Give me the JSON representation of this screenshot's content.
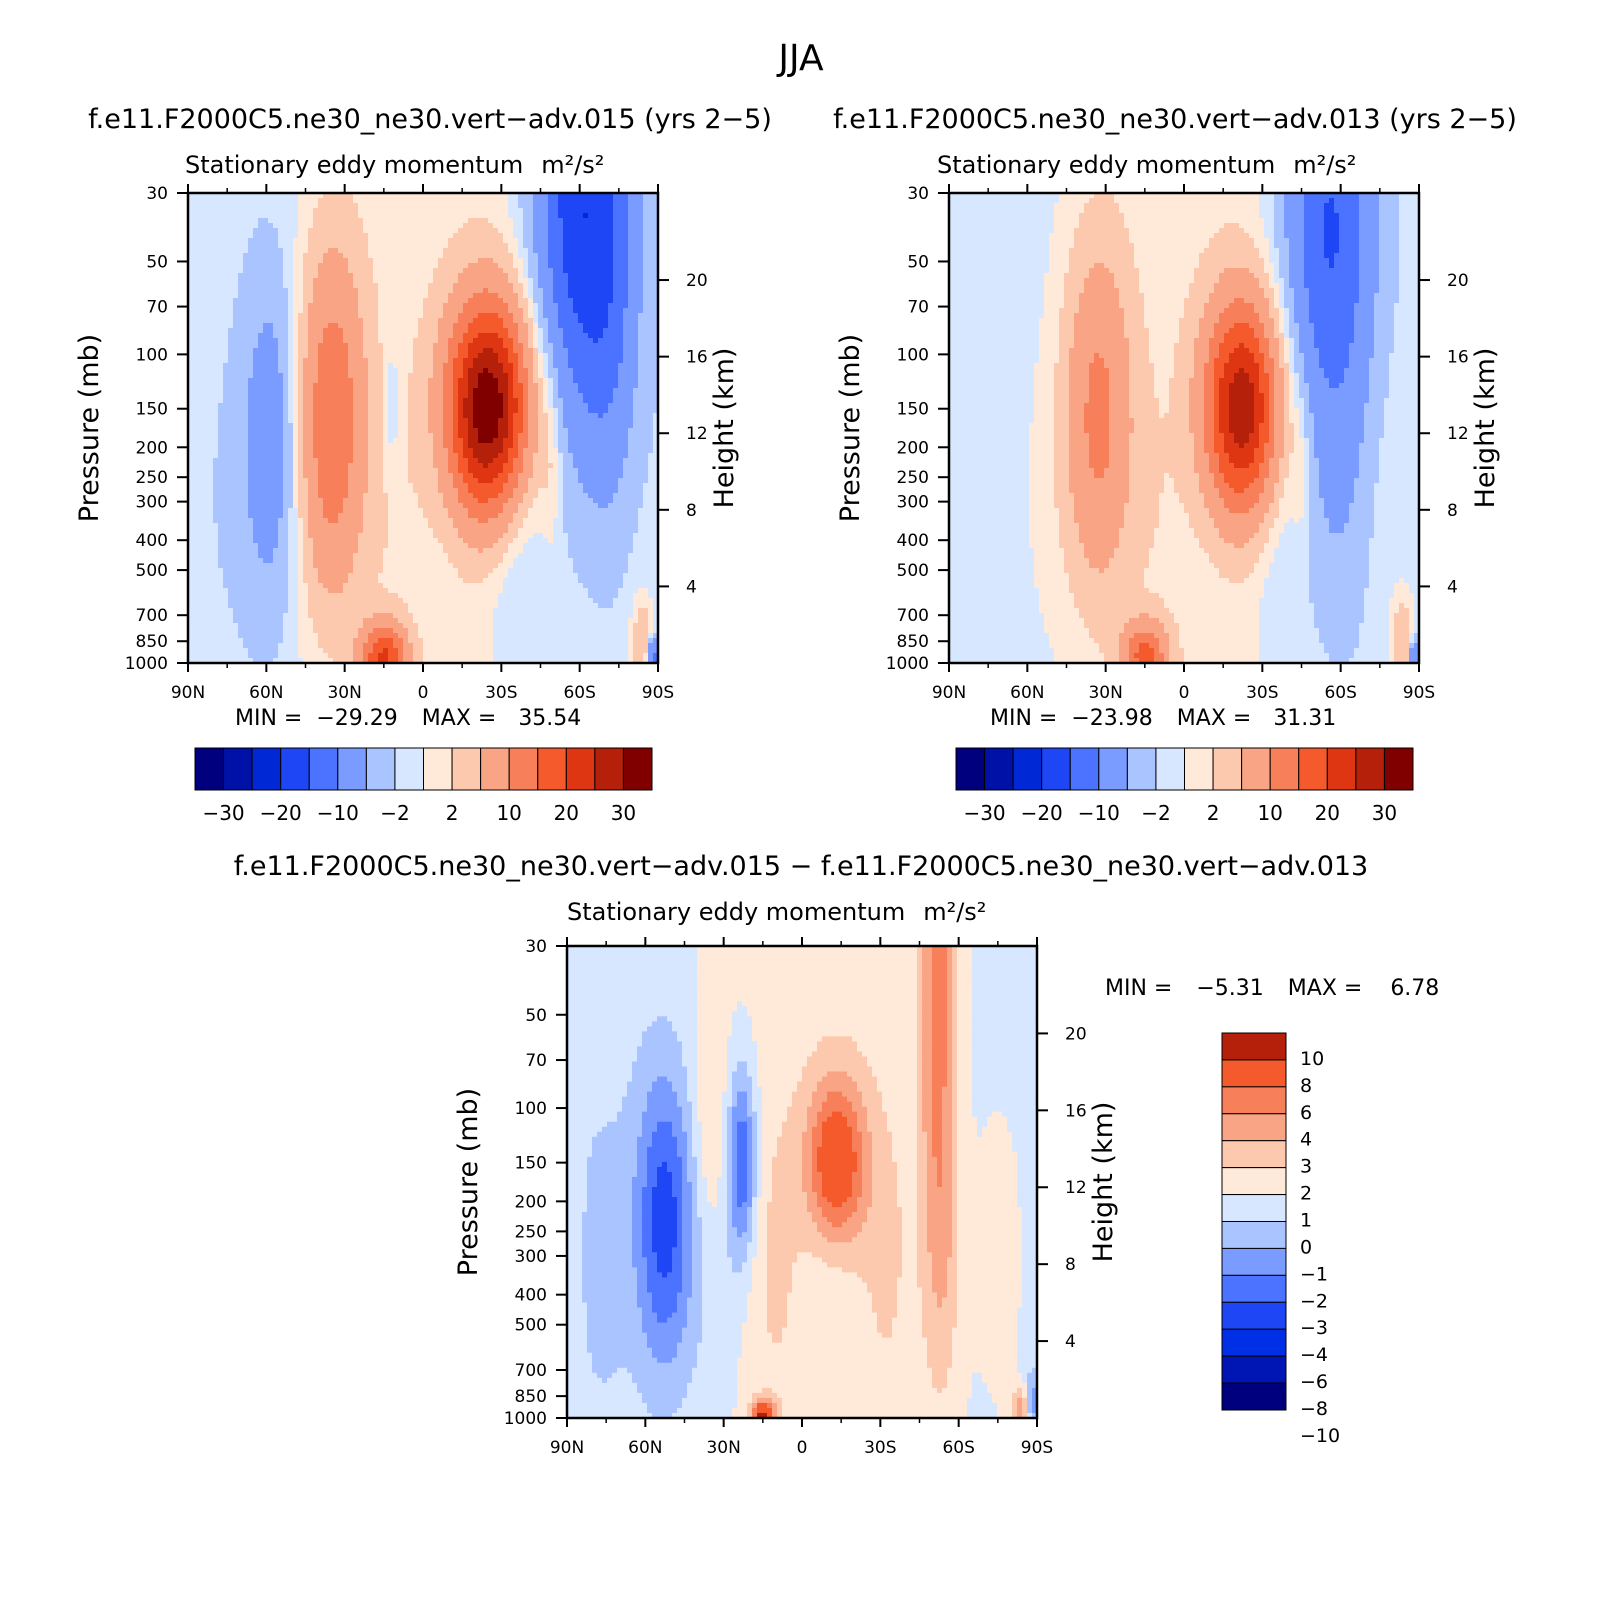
{
  "figure": {
    "title": "JJA"
  },
  "colors": {
    "diverging_16": [
      "#00007f",
      "#0011a8",
      "#0028d4",
      "#1e46f5",
      "#4b73ff",
      "#7a9bff",
      "#aac4ff",
      "#d6e7ff",
      "#ffe9d9",
      "#fcc8ae",
      "#f9a484",
      "#f7805a",
      "#f45a2b",
      "#de3612",
      "#b4200a",
      "#800000"
    ],
    "diff_14": [
      "#00007f",
      "#0016b4",
      "#0030e6",
      "#1e46f5",
      "#4b73ff",
      "#7a9bff",
      "#aac4ff",
      "#d6e7ff",
      "#ffe9d9",
      "#fcc8ae",
      "#f9a484",
      "#f7805a",
      "#f45a2b",
      "#b4200a"
    ]
  },
  "chart_data": [
    {
      "type": "heatmap",
      "id": "panel-015",
      "title": "f.e11.F2000C5.ne30_ne30.vert−adv.015 (yrs 2−5)",
      "subtitle": "Stationary eddy momentum",
      "units": "m²/s²",
      "xlabel": "",
      "ylabel": "Pressure (mb)",
      "y2label": "Height (km)",
      "x_ticks": [
        "90N",
        "60N",
        "30N",
        "0",
        "30S",
        "60S",
        "90S"
      ],
      "y_ticks": [
        "30",
        "50",
        "70",
        "100",
        "150",
        "200",
        "250",
        "300",
        "400",
        "500",
        "700",
        "850",
        "1000"
      ],
      "y2_ticks": [
        "20",
        "16",
        "12",
        "8",
        "4"
      ],
      "min_label": "MIN =",
      "min_value": "−29.29",
      "max_label": "MAX =",
      "max_value": "35.54",
      "colorbar_labels": [
        "−30",
        "−20",
        "−10",
        "−2",
        "2",
        "10",
        "20",
        "30"
      ],
      "blobs": [
        {
          "lat": -25,
          "p": 150,
          "sx": 11,
          "sy": 0.55,
          "v": 34
        },
        {
          "lat": 35,
          "p": 170,
          "sx": 9,
          "sy": 0.9,
          "v": 15
        },
        {
          "lat": 58,
          "p": 200,
          "sx": 8,
          "sy": 0.9,
          "v": -8
        },
        {
          "lat": -60,
          "p": 32,
          "sx": 12,
          "sy": 1.1,
          "v": -18
        },
        {
          "lat": -72,
          "p": 90,
          "sx": 8,
          "sy": 1.2,
          "v": -6
        },
        {
          "lat": -35,
          "p": 380,
          "sx": 8,
          "sy": 0.8,
          "v": -4
        },
        {
          "lat": 15,
          "p": 960,
          "sx": 6,
          "sy": 0.18,
          "v": 20
        },
        {
          "lat": -49,
          "p": 230,
          "sx": 3,
          "sy": 0.45,
          "v": 3
        },
        {
          "lat": 12,
          "p": 150,
          "sx": 2.5,
          "sy": 0.35,
          "v": -3
        },
        {
          "lat": -84,
          "p": 870,
          "sx": 3,
          "sy": 0.25,
          "v": 6
        },
        {
          "lat": -88,
          "p": 950,
          "sx": 1.5,
          "sy": 0.1,
          "v": -14
        }
      ],
      "background": 1.2
    },
    {
      "type": "heatmap",
      "id": "panel-013",
      "title": "f.e11.F2000C5.ne30_ne30.vert−adv.013 (yrs 2−5)",
      "subtitle": "Stationary eddy momentum",
      "units": "m²/s²",
      "xlabel": "",
      "ylabel": "Pressure (mb)",
      "y2label": "Height (km)",
      "x_ticks": [
        "90N",
        "60N",
        "30N",
        "0",
        "30S",
        "60S",
        "90S"
      ],
      "y_ticks": [
        "30",
        "50",
        "70",
        "100",
        "150",
        "200",
        "250",
        "300",
        "400",
        "500",
        "700",
        "850",
        "1000"
      ],
      "y2_ticks": [
        "20",
        "16",
        "12",
        "8",
        "4"
      ],
      "min_label": "MIN =",
      "min_value": "−23.98",
      "max_label": "MAX =",
      "max_value": "31.31",
      "colorbar_labels": [
        "−30",
        "−20",
        "−10",
        "−2",
        "2",
        "10",
        "20",
        "30"
      ],
      "blobs": [
        {
          "lat": -22,
          "p": 150,
          "sx": 10,
          "sy": 0.55,
          "v": 28
        },
        {
          "lat": 33,
          "p": 165,
          "sx": 9,
          "sy": 0.9,
          "v": 12
        },
        {
          "lat": -55,
          "p": 35,
          "sx": 12,
          "sy": 1.0,
          "v": -14
        },
        {
          "lat": -60,
          "p": 200,
          "sx": 10,
          "sy": 1.2,
          "v": -4
        },
        {
          "lat": -35,
          "p": 400,
          "sx": 8,
          "sy": 0.8,
          "v": -3
        },
        {
          "lat": 15,
          "p": 960,
          "sx": 6,
          "sy": 0.18,
          "v": 16
        },
        {
          "lat": -45,
          "p": 250,
          "sx": 3,
          "sy": 0.45,
          "v": 3
        },
        {
          "lat": -84,
          "p": 880,
          "sx": 3,
          "sy": 0.25,
          "v": 6
        },
        {
          "lat": -88,
          "p": 950,
          "sx": 1.5,
          "sy": 0.1,
          "v": -10
        }
      ],
      "background": 1.2
    },
    {
      "type": "heatmap",
      "id": "panel-diff",
      "title": "f.e11.F2000C5.ne30_ne30.vert−adv.015 − f.e11.F2000C5.ne30_ne30.vert−adv.013",
      "subtitle": "Stationary eddy momentum",
      "units": "m²/s²",
      "xlabel": "",
      "ylabel": "Pressure (mb)",
      "y2label": "Height (km)",
      "x_ticks": [
        "90N",
        "60N",
        "30N",
        "0",
        "30S",
        "60S",
        "90S"
      ],
      "y_ticks": [
        "30",
        "50",
        "70",
        "100",
        "150",
        "200",
        "250",
        "300",
        "400",
        "500",
        "700",
        "850",
        "1000"
      ],
      "y2_ticks": [
        "20",
        "16",
        "12",
        "8",
        "4"
      ],
      "min_label": "MIN =",
      "min_value": "−5.31",
      "max_label": "MAX =",
      "max_value": "6.78",
      "colorbar_labels": [
        "10",
        "8",
        "6",
        "4",
        "3",
        "2",
        "1",
        "0",
        "−1",
        "−2",
        "−3",
        "−4",
        "−6",
        "−8",
        "−10"
      ],
      "blobs": [
        {
          "lat": 53,
          "p": 240,
          "sx": 8,
          "sy": 0.8,
          "v": -5
        },
        {
          "lat": 23,
          "p": 150,
          "sx": 4,
          "sy": 0.5,
          "v": -4
        },
        {
          "lat": -13,
          "p": 150,
          "sx": 8,
          "sy": 0.45,
          "v": 5.5
        },
        {
          "lat": -52,
          "p": 40,
          "sx": 5,
          "sy": 1.6,
          "v": 3.5
        },
        {
          "lat": -55,
          "p": 300,
          "sx": 6,
          "sy": 0.8,
          "v": 1.8
        },
        {
          "lat": 15,
          "p": 980,
          "sx": 3,
          "sy": 0.08,
          "v": 6
        },
        {
          "lat": 35,
          "p": 120,
          "sx": 5,
          "sy": 0.7,
          "v": 1.5
        },
        {
          "lat": -84,
          "p": 950,
          "sx": 3,
          "sy": 0.12,
          "v": 3
        },
        {
          "lat": -88,
          "p": 900,
          "sx": 1.5,
          "sy": 0.15,
          "v": -3
        }
      ],
      "background": 0.6
    }
  ]
}
